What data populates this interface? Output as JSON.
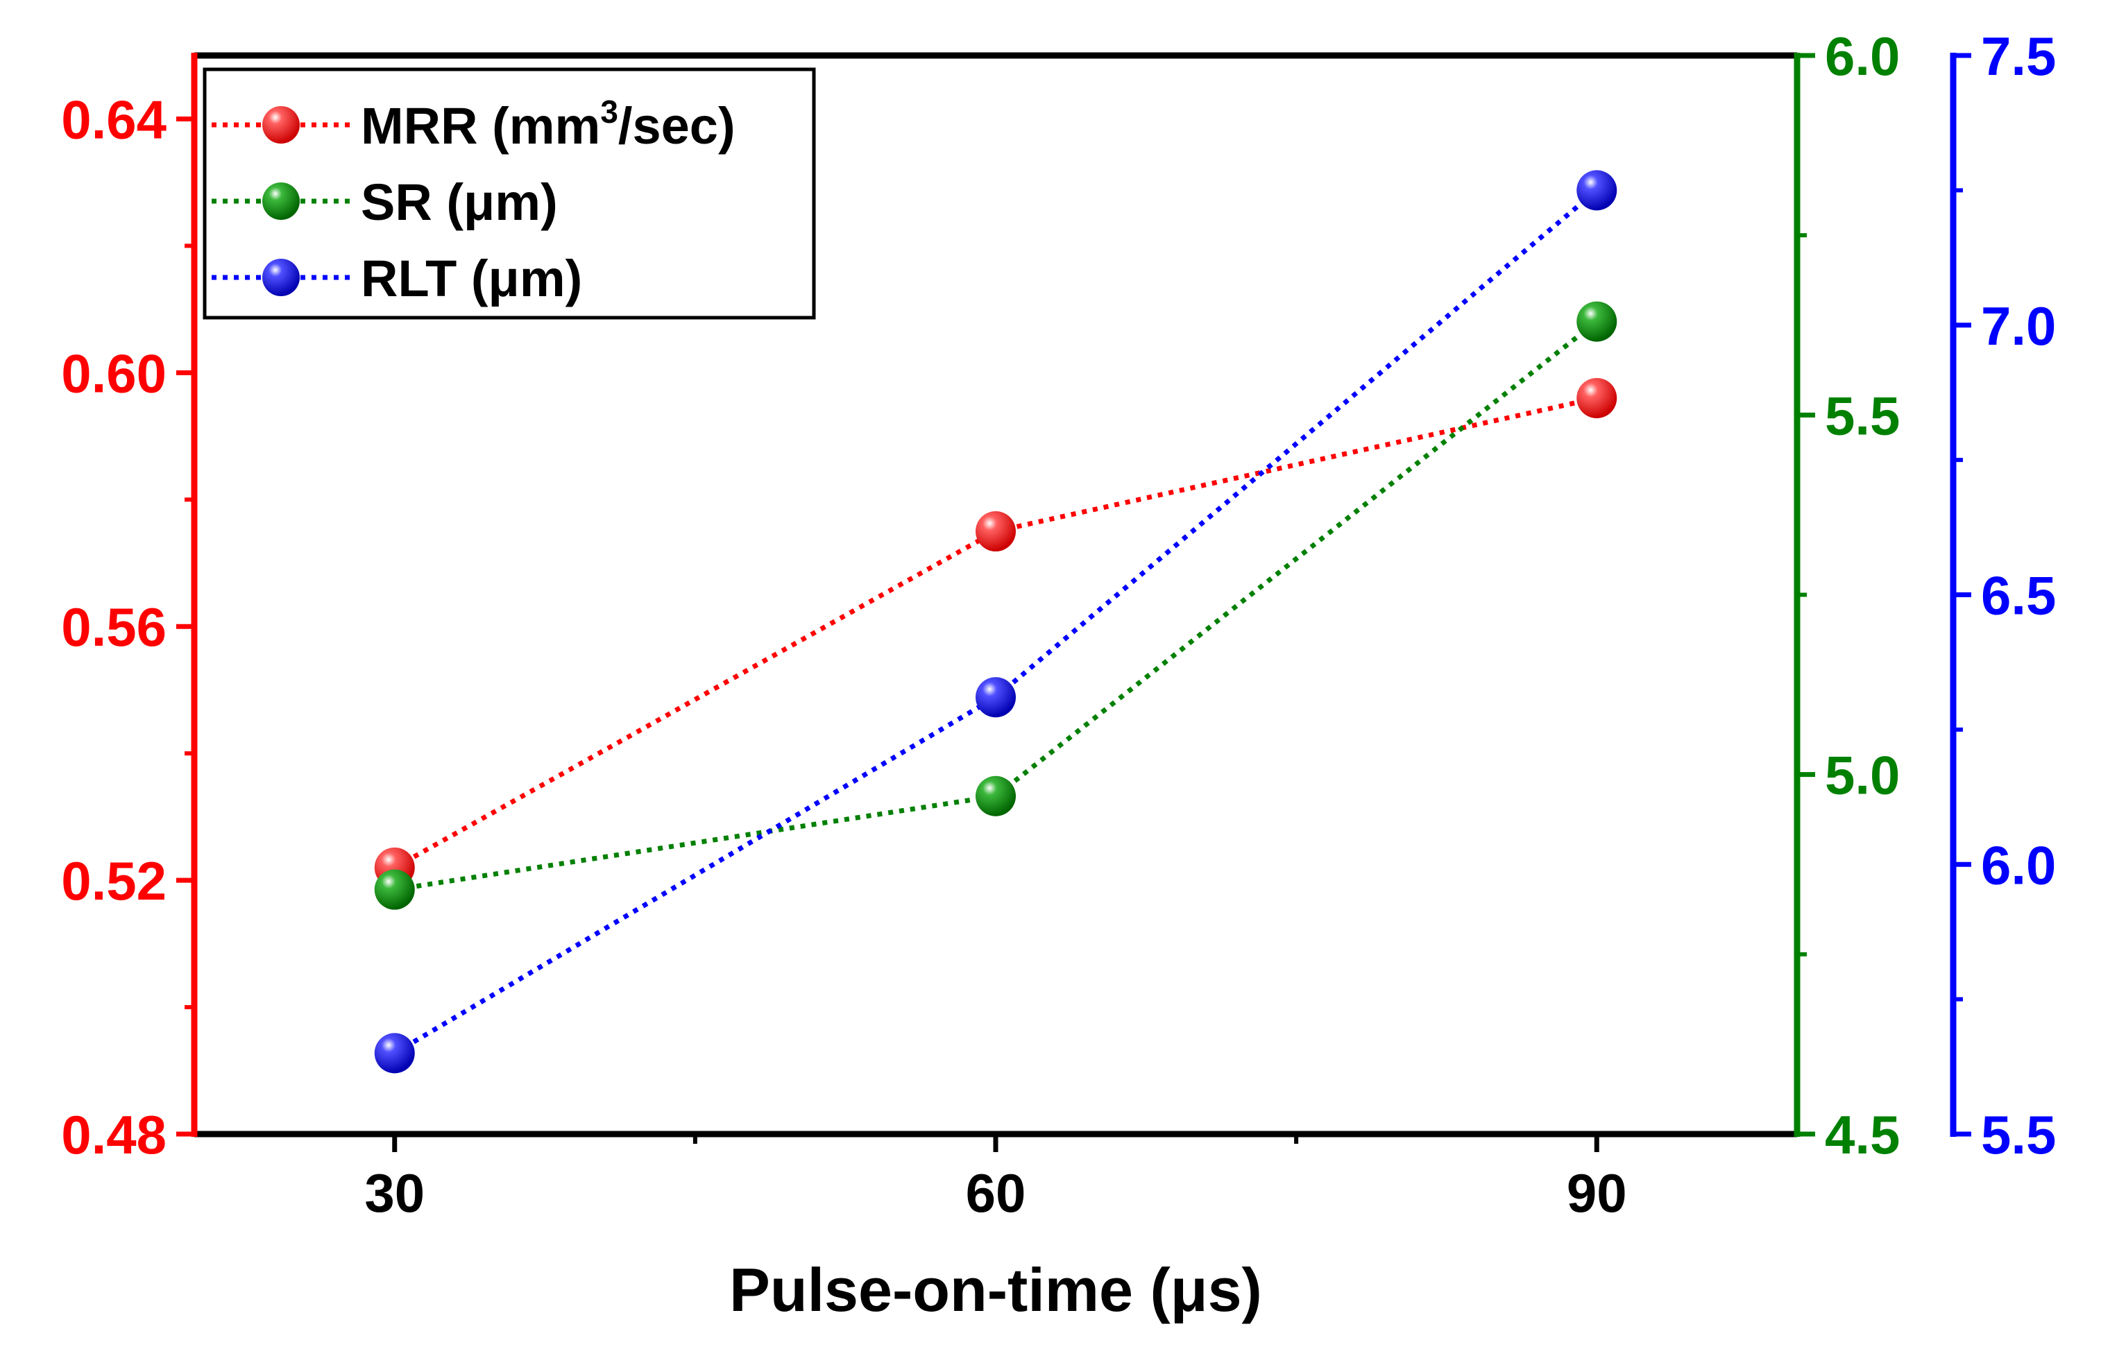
{
  "chart_data": {
    "type": "line",
    "xlabel": "Pulse-on-time (μs)",
    "x": [
      30,
      60,
      90
    ],
    "xlim": [
      20,
      100
    ],
    "x_ticks": [
      "30",
      "60",
      "90"
    ],
    "series": [
      {
        "name": "MRR (mm3/sec)",
        "legend_main": "MRR (mm",
        "legend_sup": "3",
        "legend_tail": "/sec)",
        "axis": "left",
        "color": "#ff0000",
        "values": [
          0.522,
          0.575,
          0.596
        ]
      },
      {
        "name": "SR (μm)",
        "axis": "right1",
        "color": "#008000",
        "values": [
          4.84,
          4.97,
          5.63
        ]
      },
      {
        "name": "RLT (μm)",
        "axis": "right2",
        "color": "#0000ff",
        "values": [
          5.65,
          6.31,
          7.25
        ]
      }
    ],
    "axes": {
      "left": {
        "ylim": [
          0.48,
          0.65
        ],
        "ticks": [
          "0.48",
          "0.52",
          "0.56",
          "0.60",
          "0.64"
        ],
        "tick_values": [
          0.48,
          0.52,
          0.56,
          0.6,
          0.64
        ],
        "color": "#ff0000"
      },
      "right1": {
        "ylim": [
          4.5,
          6.0
        ],
        "ticks": [
          "4.5",
          "5.0",
          "5.5",
          "6.0"
        ],
        "tick_values": [
          4.5,
          5.0,
          5.5,
          6.0
        ],
        "color": "#008000"
      },
      "right2": {
        "ylim": [
          5.5,
          7.5
        ],
        "ticks": [
          "5.5",
          "6.0",
          "6.5",
          "7.0",
          "7.5"
        ],
        "tick_values": [
          5.5,
          6.0,
          6.5,
          7.0,
          7.5
        ],
        "color": "#0000ff"
      }
    },
    "line_style": "dotted",
    "marker": "sphere",
    "legend_position": "top-left",
    "grid": false
  }
}
